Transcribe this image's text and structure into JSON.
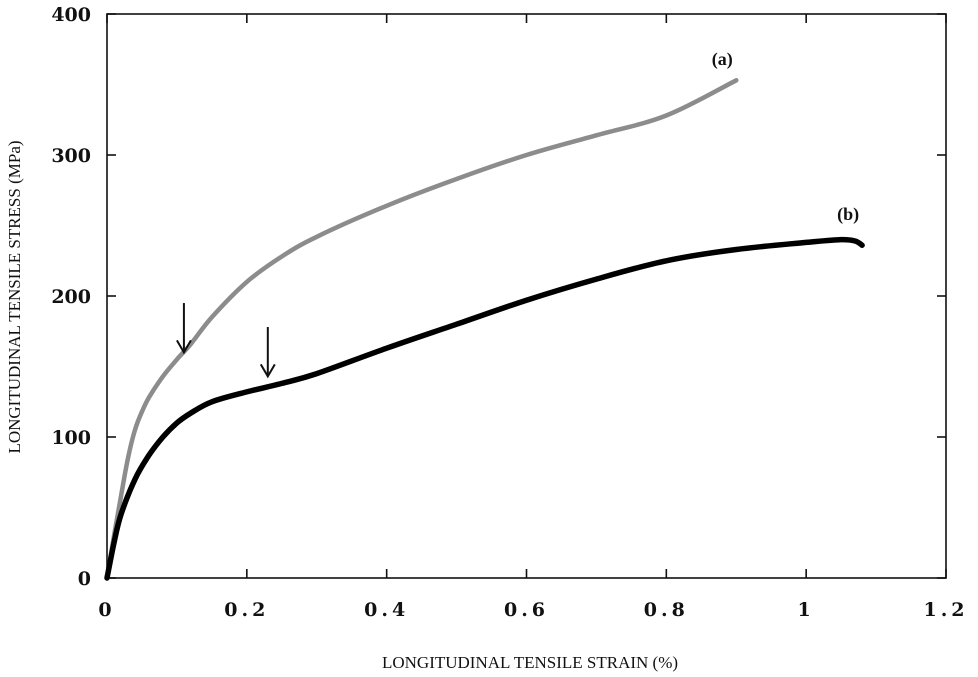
{
  "chart_data": {
    "type": "line",
    "xlabel": "LONGITUDINAL TENSILE STRAIN (%)",
    "ylabel": "LONGITUDINAL TENSILE STRESS (MPa)",
    "xlim": [
      0,
      1.2
    ],
    "ylim": [
      0,
      400
    ],
    "x_ticks": [
      0,
      0.2,
      0.4,
      0.6,
      0.8,
      1,
      1.2
    ],
    "x_tick_labels": [
      "0",
      "0.2",
      "0.4",
      "0.6",
      "0.8",
      "1",
      "1.2"
    ],
    "y_ticks": [
      0,
      100,
      200,
      300,
      400
    ],
    "y_tick_labels": [
      "0",
      "100",
      "200",
      "300",
      "400"
    ],
    "grid": false,
    "legend": "none",
    "series": [
      {
        "name": "(a)",
        "color": "#8c8c8c",
        "x": [
          0,
          0.01,
          0.02,
          0.03,
          0.04,
          0.05,
          0.06,
          0.08,
          0.1,
          0.12,
          0.15,
          0.2,
          0.25,
          0.3,
          0.4,
          0.5,
          0.6,
          0.7,
          0.8,
          0.9
        ],
        "y": [
          0,
          30,
          58,
          85,
          105,
          118,
          128,
          143,
          155,
          166,
          185,
          210,
          228,
          242,
          264,
          283,
          300,
          314,
          328,
          353
        ]
      },
      {
        "name": "(b)",
        "color": "#000000",
        "x": [
          0,
          0.01,
          0.02,
          0.04,
          0.06,
          0.08,
          0.1,
          0.12,
          0.15,
          0.2,
          0.25,
          0.3,
          0.4,
          0.5,
          0.6,
          0.7,
          0.8,
          0.9,
          1.0,
          1.05,
          1.07,
          1.08
        ],
        "y": [
          0,
          25,
          45,
          70,
          87,
          100,
          110,
          117,
          125,
          132,
          138,
          145,
          163,
          180,
          197,
          212,
          225,
          233,
          238,
          240,
          239,
          236
        ]
      }
    ],
    "annotations": [
      {
        "type": "arrow",
        "x": 0.11,
        "y_tip": 160,
        "y_tail": 195
      },
      {
        "type": "arrow",
        "x": 0.23,
        "y_tip": 143,
        "y_tail": 178
      }
    ],
    "series_labels": [
      {
        "text": "(a)",
        "x": 0.88,
        "y": 364
      },
      {
        "text": "(b)",
        "x": 1.06,
        "y": 254
      }
    ]
  }
}
